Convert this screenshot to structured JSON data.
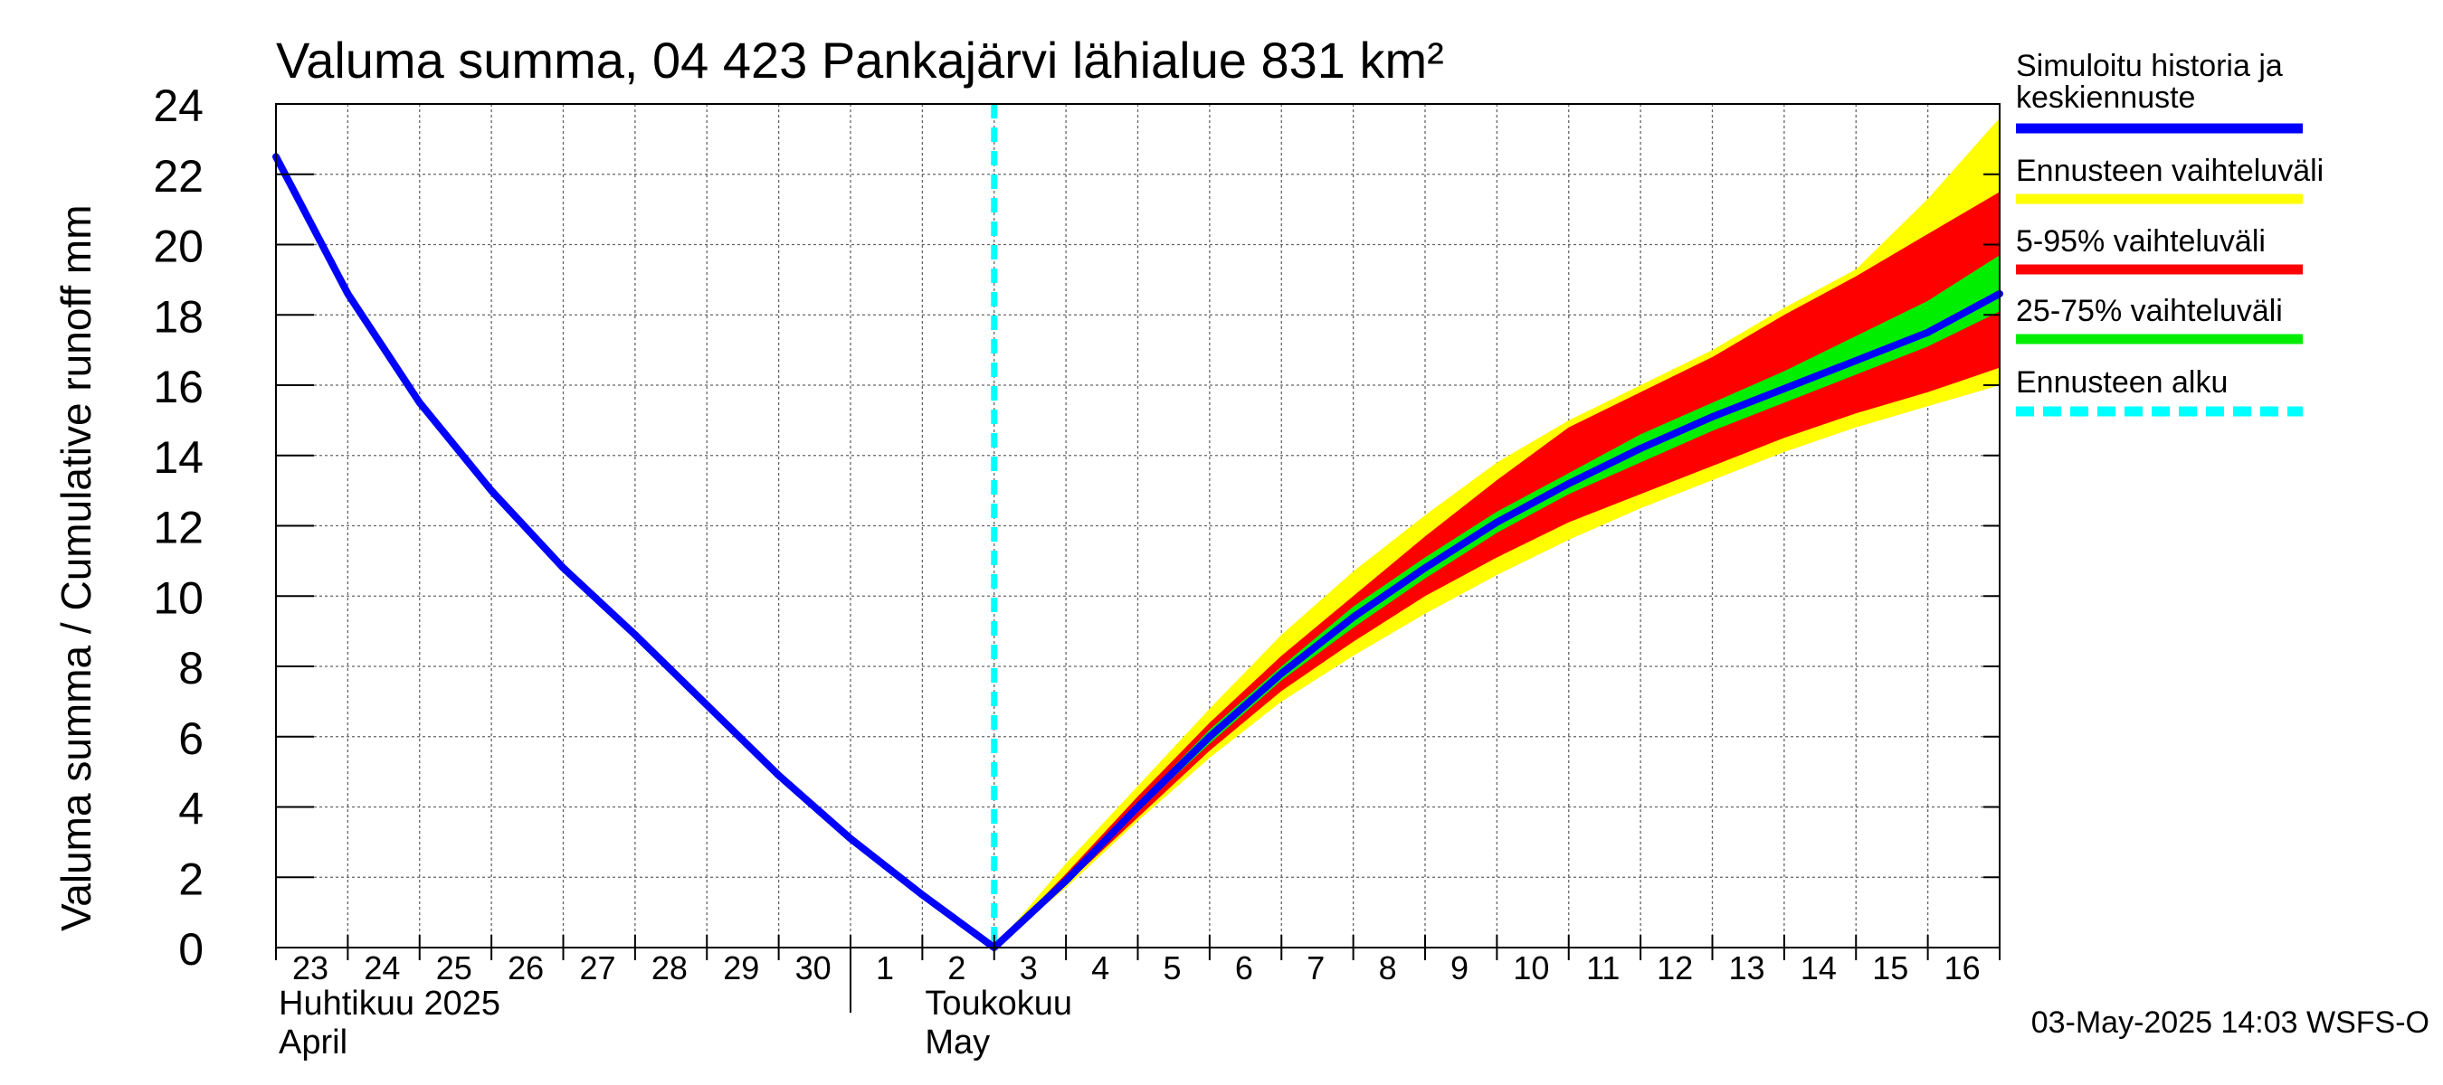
{
  "chart_data": {
    "type": "area",
    "title": "Valuma summa, 04 423 Pankajärvi lähialue 831 km²",
    "ylabel": "Valuma summa / Cumulative runoff    mm",
    "ylim": [
      0,
      24
    ],
    "yticks": [
      "0",
      "2",
      "4",
      "6",
      "8",
      "10",
      "12",
      "14",
      "16",
      "18",
      "20",
      "22",
      "24"
    ],
    "xlim": [
      0,
      24
    ],
    "day_labels": [
      "23",
      "24",
      "25",
      "26",
      "27",
      "28",
      "29",
      "30",
      "1",
      "2",
      "3",
      "4",
      "5",
      "6",
      "7",
      "8",
      "9",
      "10",
      "11",
      "12",
      "13",
      "14",
      "15",
      "16"
    ],
    "month_labels": [
      {
        "line1": "Huhtikuu  2025",
        "line2": "April",
        "at": 0
      },
      {
        "line1": "Toukokuu",
        "line2": "May",
        "at": 9
      }
    ],
    "month_boundaries": [
      8
    ],
    "forecast_start": 10,
    "grid": true,
    "legend_position": "right",
    "series": [
      {
        "name": "Simuloitu historia ja keskiennuste",
        "kind": "line",
        "color": "#0000ff",
        "x": [
          0,
          1,
          2,
          3,
          4,
          5,
          6,
          7,
          8,
          9,
          10,
          11,
          12,
          13,
          14,
          15,
          16,
          17,
          18,
          19,
          20,
          21,
          22,
          23,
          24
        ],
        "y": [
          22.5,
          18.6,
          15.5,
          13.0,
          10.8,
          8.9,
          6.9,
          4.9,
          3.1,
          1.5,
          0.0,
          1.9,
          4.0,
          6.0,
          7.8,
          9.4,
          10.8,
          12.1,
          13.2,
          14.2,
          15.1,
          15.9,
          16.7,
          17.5,
          18.6
        ]
      },
      {
        "name": "Ennusteen vaihteluväli",
        "kind": "band",
        "color": "#ffff00",
        "x": [
          10,
          11,
          12,
          13,
          14,
          15,
          16,
          17,
          18,
          19,
          20,
          21,
          22,
          23,
          24
        ],
        "low": [
          0.0,
          1.7,
          3.6,
          5.4,
          7.0,
          8.3,
          9.5,
          10.6,
          11.6,
          12.5,
          13.3,
          14.1,
          14.8,
          15.4,
          16.0
        ],
        "high": [
          0.0,
          2.4,
          4.6,
          6.8,
          8.9,
          10.7,
          12.3,
          13.8,
          15.0,
          16.0,
          17.0,
          18.2,
          19.3,
          21.3,
          23.6
        ]
      },
      {
        "name": "5-95% vaihteluväli",
        "kind": "band",
        "color": "#ff0000",
        "x": [
          10,
          11,
          12,
          13,
          14,
          15,
          16,
          17,
          18,
          19,
          20,
          21,
          22,
          23,
          24
        ],
        "low": [
          0.0,
          1.8,
          3.7,
          5.6,
          7.3,
          8.7,
          10.0,
          11.1,
          12.1,
          12.9,
          13.7,
          14.5,
          15.2,
          15.8,
          16.5
        ],
        "high": [
          0.0,
          2.1,
          4.3,
          6.4,
          8.3,
          10.0,
          11.7,
          13.3,
          14.8,
          15.8,
          16.8,
          18.0,
          19.1,
          20.3,
          21.5
        ]
      },
      {
        "name": "25-75% vaihteluväli",
        "kind": "band",
        "color": "#00ee00",
        "x": [
          10,
          11,
          12,
          13,
          14,
          15,
          16,
          17,
          18,
          19,
          20,
          21,
          22,
          23,
          24
        ],
        "low": [
          0.0,
          1.9,
          3.9,
          5.8,
          7.6,
          9.1,
          10.5,
          11.8,
          12.9,
          13.8,
          14.7,
          15.5,
          16.3,
          17.1,
          18.1
        ],
        "high": [
          0.0,
          2.0,
          4.1,
          6.2,
          8.0,
          9.7,
          11.1,
          12.4,
          13.5,
          14.6,
          15.5,
          16.4,
          17.4,
          18.4,
          19.7
        ]
      },
      {
        "name": "Ennusteen alku",
        "kind": "vline",
        "color": "#00ffff",
        "x": 10
      }
    ],
    "legend": [
      {
        "label": "Simuloitu historia ja\nkeskiennuste",
        "color": "#0000ff",
        "style": "solid"
      },
      {
        "label": "Ennusteen vaihteluväli",
        "color": "#ffff00",
        "style": "solid"
      },
      {
        "label": "5-95% vaihteluväli",
        "color": "#ff0000",
        "style": "solid"
      },
      {
        "label": "25-75% vaihteluväli",
        "color": "#00ee00",
        "style": "solid"
      },
      {
        "label": "Ennusteen alku",
        "color": "#00ffff",
        "style": "dashed"
      }
    ],
    "footer": "03-May-2025 14:03 WSFS-O"
  }
}
